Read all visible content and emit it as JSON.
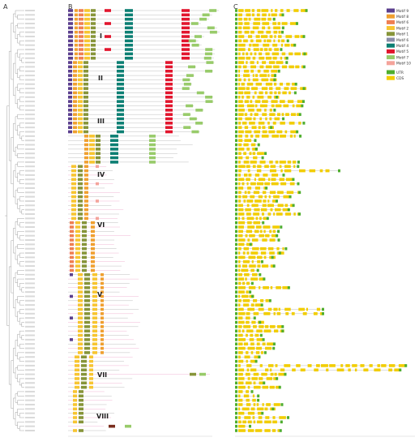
{
  "panels": {
    "a": "A",
    "b": "B",
    "c": "C"
  },
  "groups": [
    "I",
    "II",
    "III",
    "IV",
    "VI",
    "V",
    "VII",
    "VIII"
  ],
  "legend": {
    "motifs": [
      {
        "label": "Motif 9",
        "color": "#5b3f8e"
      },
      {
        "label": "Motif 8",
        "color": "#f0a030"
      },
      {
        "label": "Motif 6",
        "color": "#ef7f52"
      },
      {
        "label": "Motif 2",
        "color": "#f7c531"
      },
      {
        "label": "Motif 1",
        "color": "#87953a"
      },
      {
        "label": "Motif 6",
        "color": "#8a8da8"
      },
      {
        "label": "Motif 4",
        "color": "#0c7f73"
      },
      {
        "label": "Motif 5",
        "color": "#e2152d"
      },
      {
        "label": "Motif 7",
        "color": "#98cb6a"
      },
      {
        "label": "Motif 10",
        "color": "#f4a49b"
      }
    ],
    "structure": [
      {
        "label": "UTR",
        "color": "#4fae2e"
      },
      {
        "label": "CDS",
        "color": "#f2cd00"
      }
    ]
  },
  "colors": {
    "tree": "#8c8c8c",
    "line": "#bfbfbf",
    "pink_line": "#f2b7d4"
  }
}
